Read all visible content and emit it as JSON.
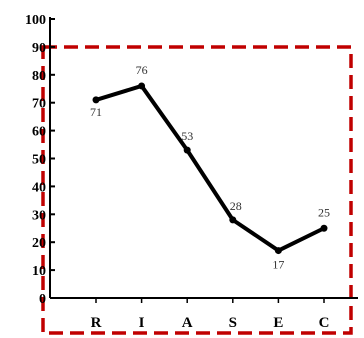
{
  "chart_data": {
    "type": "line",
    "categories": [
      "R",
      "I",
      "A",
      "S",
      "E",
      "C"
    ],
    "values": [
      71,
      76,
      53,
      28,
      17,
      25
    ],
    "data_labels": [
      "71",
      "76",
      "53",
      "28",
      "17",
      "25"
    ],
    "ylim": [
      0,
      100
    ],
    "yticks": [
      "0",
      "10",
      "20",
      "30",
      "40",
      "50",
      "60",
      "70",
      "80",
      "90",
      "100"
    ],
    "grid": false,
    "legend": "none",
    "colors": {
      "line": "#000000",
      "highlight_box": "#c00000"
    }
  }
}
